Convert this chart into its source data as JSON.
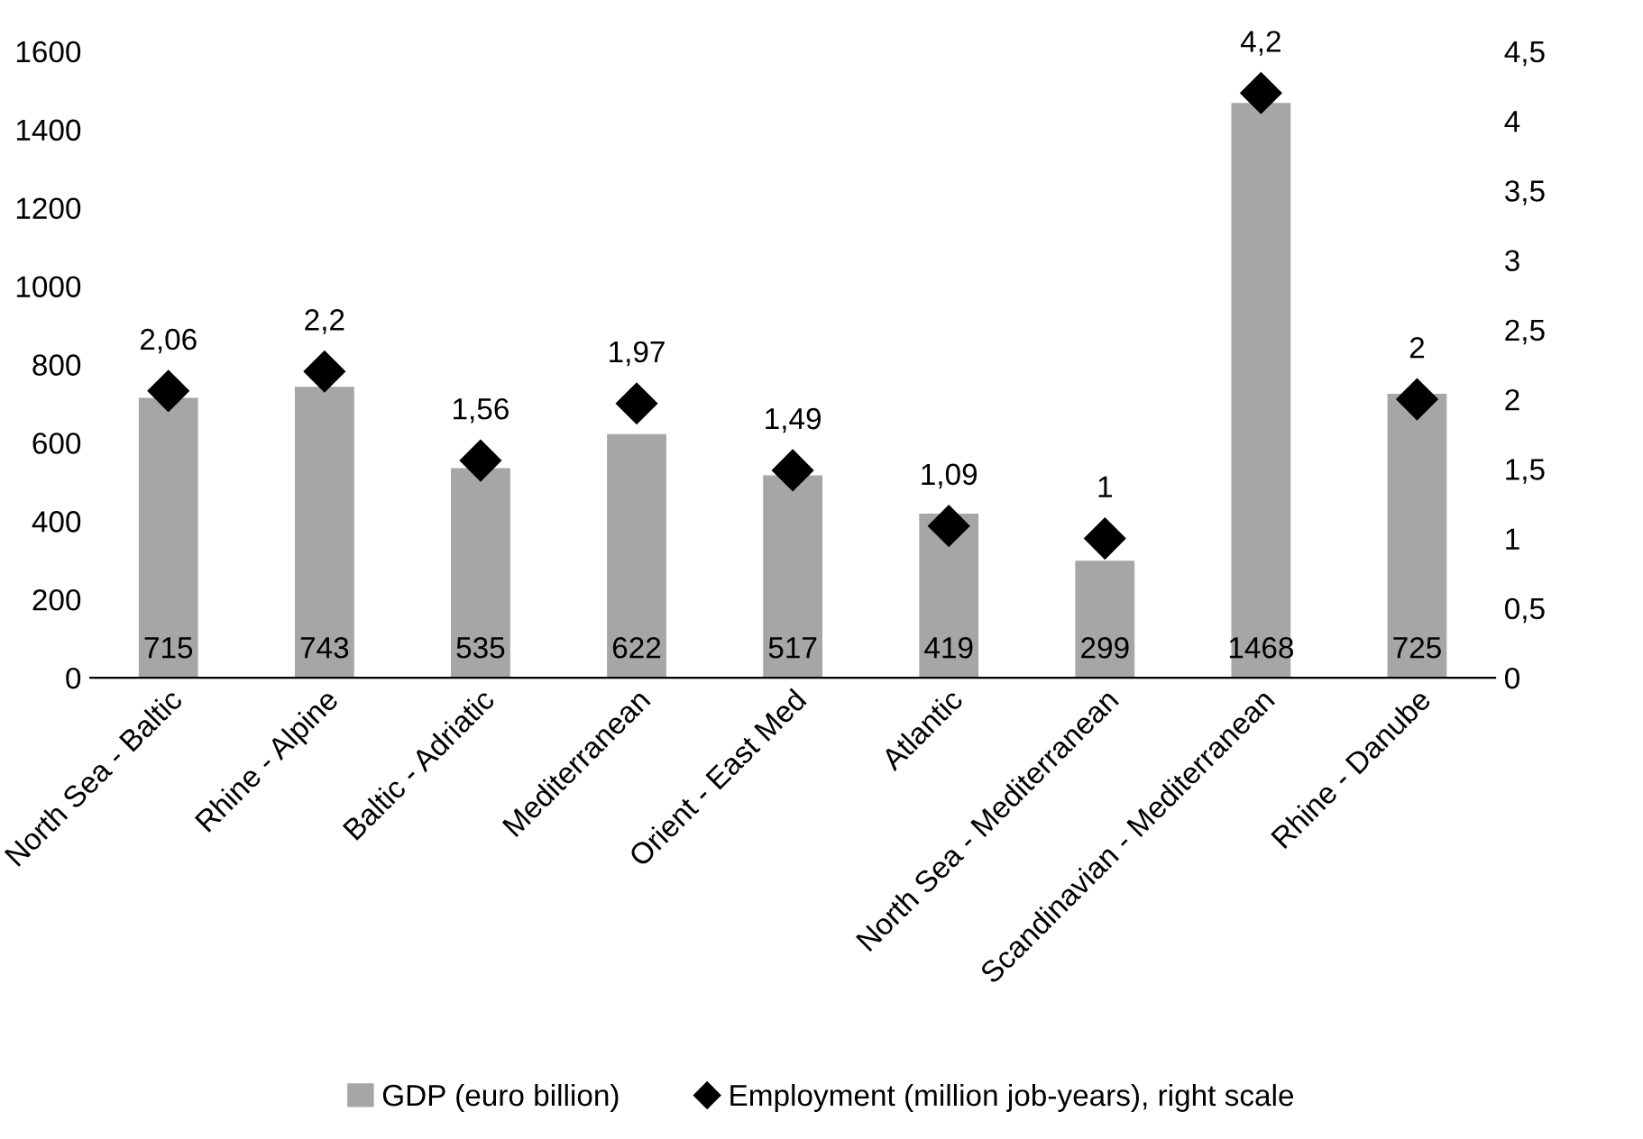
{
  "chart_data": {
    "type": "bar",
    "categories": [
      "North Sea - Baltic",
      "Rhine - Alpine",
      "Baltic - Adriatic",
      "Mediterranean",
      "Orient - East Med",
      "Atlantic",
      "North Sea - Mediterranean",
      "Scandinavian - Mediterranean",
      "Rhine - Danube"
    ],
    "series": [
      {
        "name": "GDP (euro billion)",
        "color": "#a6a6a6",
        "values": [
          715,
          743,
          535,
          622,
          517,
          419,
          299,
          1468,
          725
        ],
        "data_labels": true
      },
      {
        "name": "Employment (million job-years), right scale",
        "type": "scatter",
        "axis": "y2",
        "color": "#000000",
        "marker": "diamond",
        "values": [
          2.06,
          2.2,
          1.56,
          1.97,
          1.49,
          1.09,
          1,
          4.2,
          2
        ],
        "value_labels": [
          "2,06",
          "2,2",
          "1,56",
          "1,97",
          "1,49",
          "1,09",
          "1",
          "4,2",
          "2"
        ]
      }
    ],
    "ylim": [
      0,
      1600
    ],
    "yticks": [
      0,
      200,
      400,
      600,
      800,
      1000,
      1200,
      1400,
      1600
    ],
    "y2lim": [
      0,
      4.5
    ],
    "y2ticks": [
      0,
      {
        "value": 0.5,
        "label": "0,5"
      },
      1,
      {
        "value": 1.5,
        "label": "1,5"
      },
      2,
      {
        "value": 2.5,
        "label": "2,5"
      },
      3,
      {
        "value": 3.5,
        "label": "3,5"
      },
      4,
      {
        "value": 4.5,
        "label": "4,5"
      }
    ],
    "grid": false,
    "legend": "bottom"
  }
}
